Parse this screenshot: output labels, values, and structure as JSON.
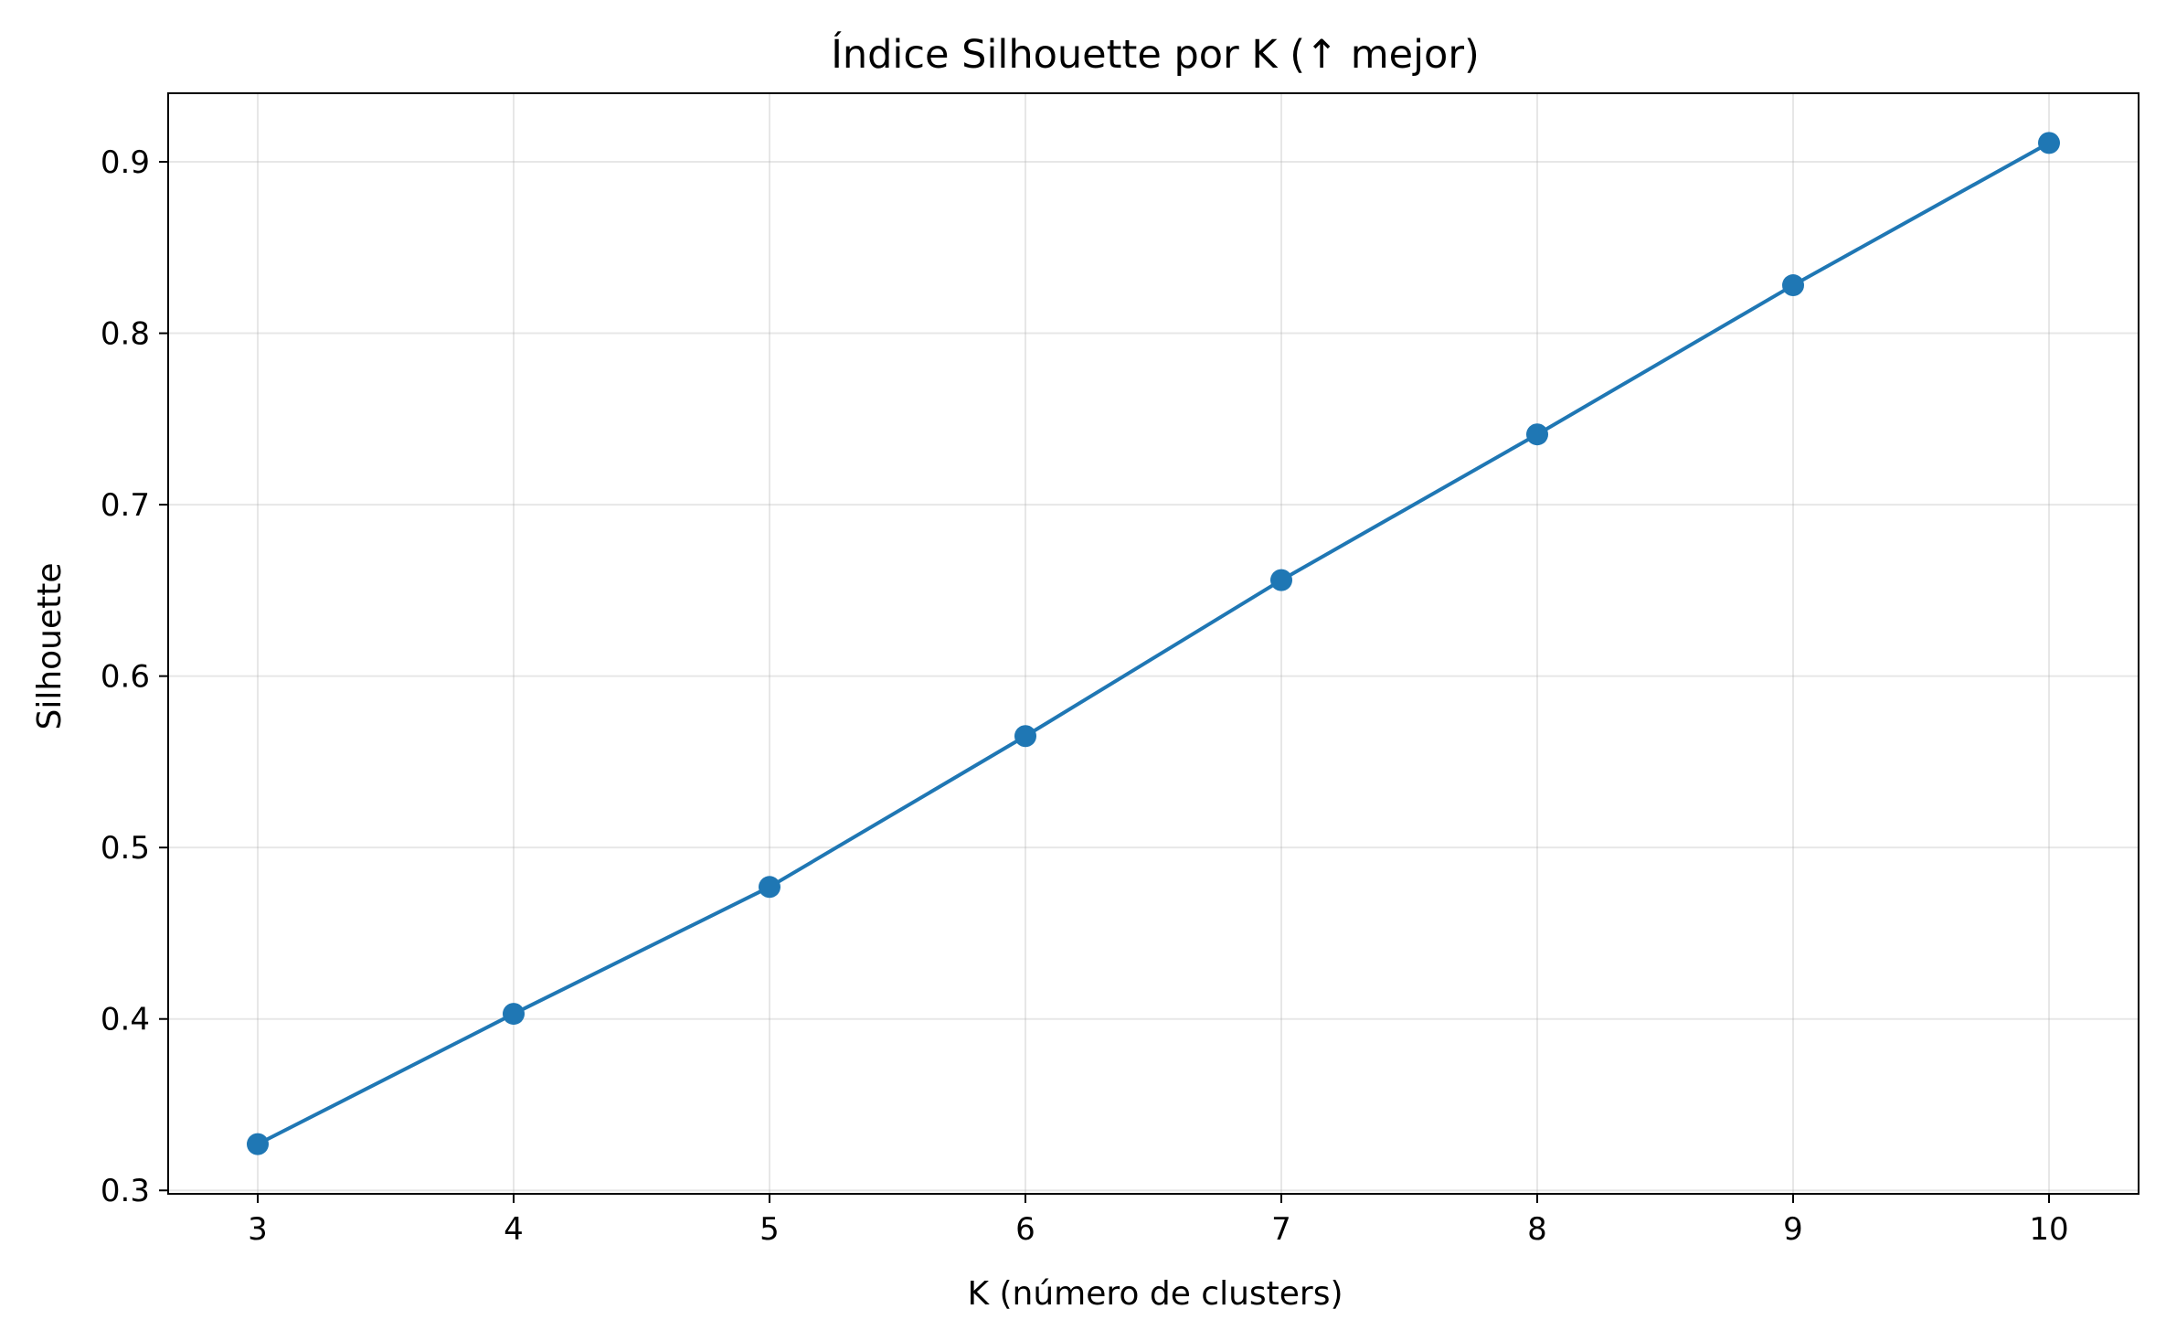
{
  "chart_data": {
    "type": "line",
    "title": "Índice Silhouette por K (↑ mejor)",
    "xlabel": "K (número de clusters)",
    "ylabel": "Silhouette",
    "x": [
      3,
      4,
      5,
      6,
      7,
      8,
      9,
      10
    ],
    "series": [
      {
        "values": [
          0.327,
          0.403,
          0.477,
          0.565,
          0.656,
          0.741,
          0.828,
          0.911
        ],
        "color": "#1f77b4",
        "marker": "circle"
      }
    ],
    "xticks": [
      "3",
      "4",
      "5",
      "6",
      "7",
      "8",
      "9",
      "10"
    ],
    "xtick_values": [
      3,
      4,
      5,
      6,
      7,
      8,
      9,
      10
    ],
    "yticks": [
      "0.3",
      "0.4",
      "0.5",
      "0.6",
      "0.7",
      "0.8",
      "0.9"
    ],
    "ytick_values": [
      0.3,
      0.4,
      0.5,
      0.6,
      0.7,
      0.8,
      0.9
    ],
    "xlim": [
      2.65,
      10.35
    ],
    "ylim": [
      0.298,
      0.94
    ],
    "grid": true,
    "legend": "none"
  }
}
